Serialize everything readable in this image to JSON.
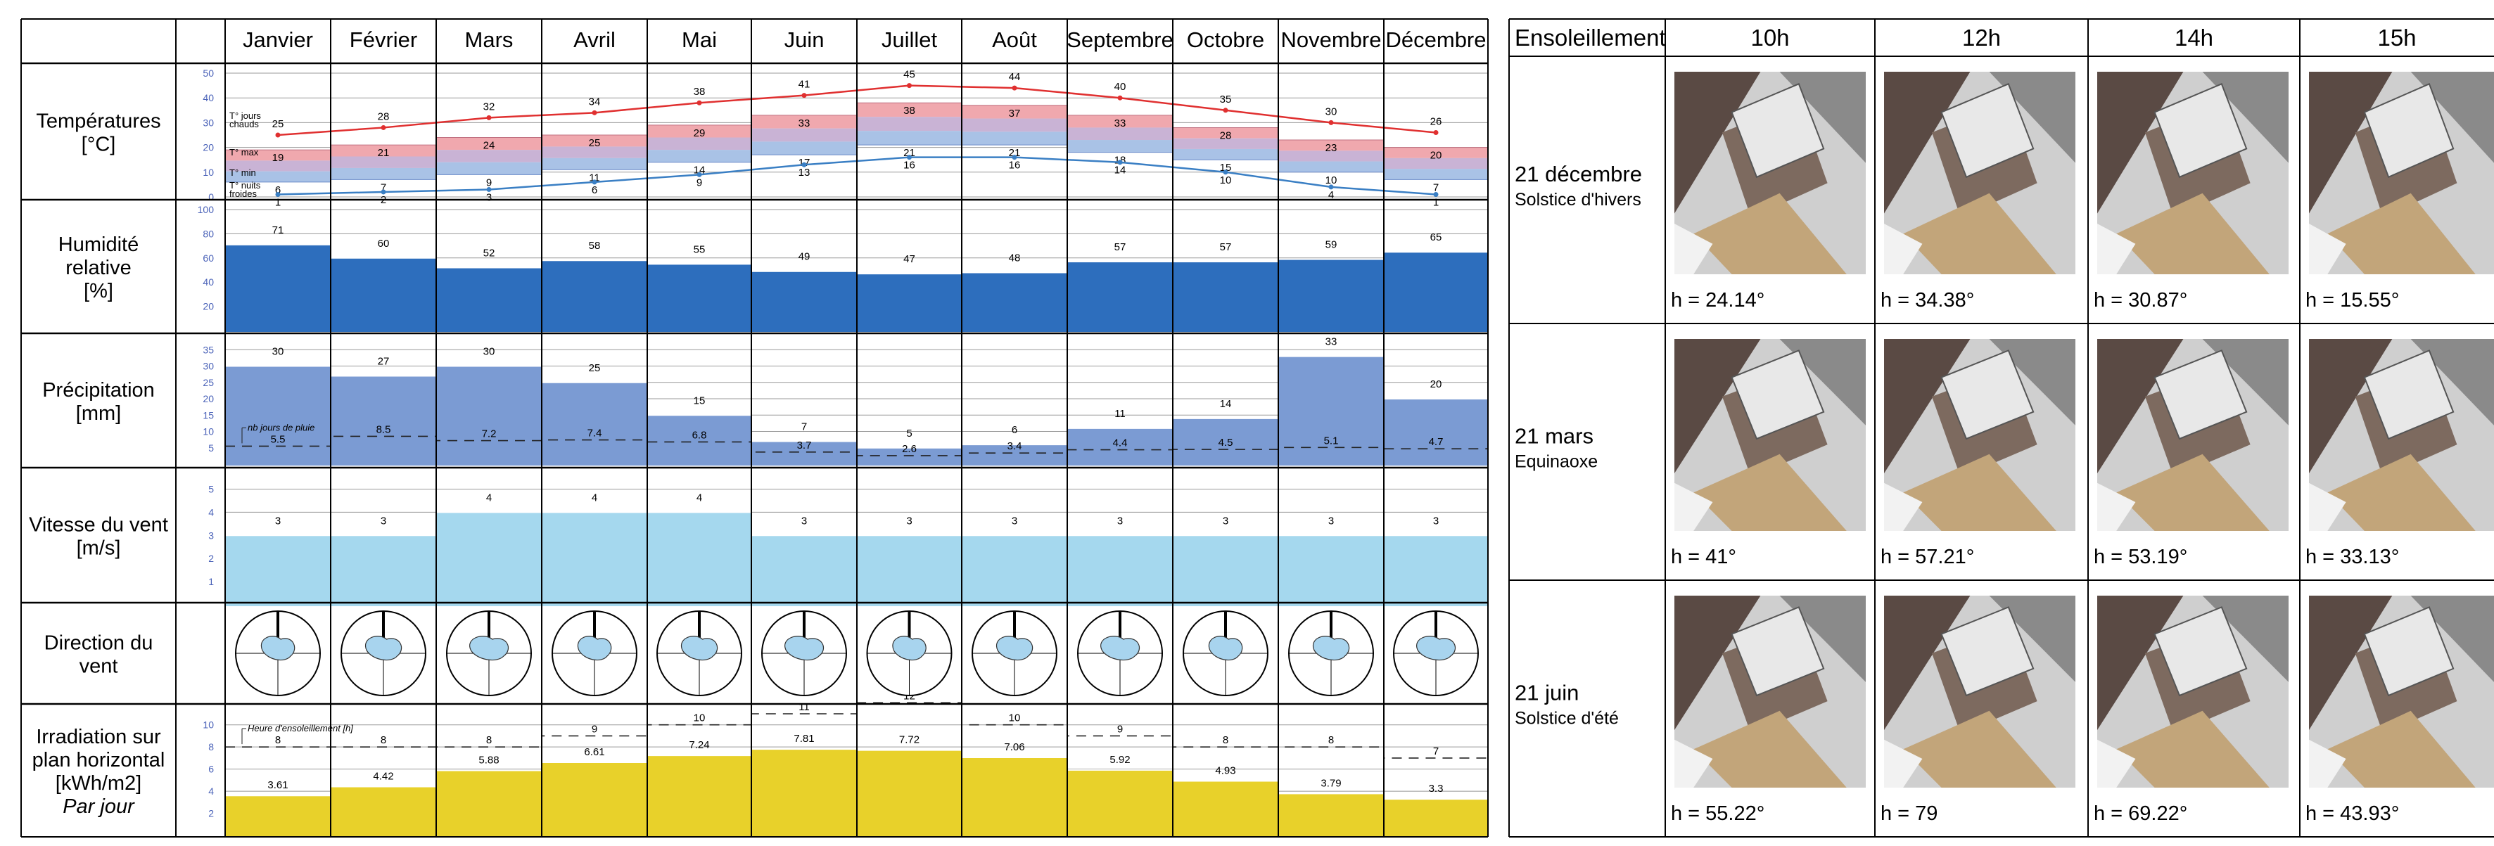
{
  "months": [
    "Janvier",
    "Février",
    "Mars",
    "Avril",
    "Mai",
    "Juin",
    "Juillet",
    "Août",
    "Septembre",
    "Octobre",
    "Novembre",
    "Décembre"
  ],
  "chart_data": [
    {
      "type": "line",
      "title": "Températures\n[°C]",
      "ylim": [
        0,
        50
      ],
      "ticks": [
        0,
        10,
        20,
        30,
        40,
        50
      ],
      "series": [
        {
          "name": "T° jours chauds",
          "color": "#e03030",
          "values": [
            25,
            28,
            32,
            34,
            38,
            41,
            45,
            44,
            40,
            35,
            30,
            26
          ]
        },
        {
          "name": "T° max",
          "values": [
            19,
            21,
            24,
            25,
            29,
            33,
            38,
            37,
            33,
            28,
            23,
            20
          ]
        },
        {
          "name": "T° min",
          "values": [
            6,
            7,
            9,
            11,
            14,
            17,
            21,
            21,
            18,
            15,
            10,
            7
          ]
        },
        {
          "name": "T° nuits froides",
          "color": "#3a7fc4",
          "values": [
            1,
            2,
            3,
            6,
            9,
            13,
            16,
            16,
            14,
            10,
            4,
            1
          ]
        }
      ],
      "band_colors": {
        "max": "#f0a8ae",
        "mid": "#c9b3d5",
        "min": "#a9c2e6"
      }
    },
    {
      "type": "bar",
      "title": "Humidité\nrelative\n[%]",
      "ylim": [
        0,
        100
      ],
      "ticks": [
        20,
        40,
        60,
        80,
        100
      ],
      "color": "#2d6ebd",
      "values": [
        71,
        60,
        52,
        58,
        55,
        49,
        47,
        48,
        57,
        57,
        59,
        65
      ]
    },
    {
      "type": "bar",
      "title": "Précipitation\n[mm]",
      "ylim": [
        0,
        37
      ],
      "ticks": [
        5,
        10,
        15,
        20,
        25,
        30,
        35
      ],
      "color": "#7b9bd3",
      "values": [
        30,
        27,
        30,
        25,
        15,
        7,
        5,
        6,
        11,
        14,
        33,
        20
      ],
      "line_label": "nb jours de pluie",
      "line_values": [
        5.5,
        8.5,
        7.2,
        7.4,
        6.8,
        3.7,
        2.6,
        3.4,
        4.4,
        4.5,
        5.1,
        4.7
      ]
    },
    {
      "type": "bar",
      "title": "Vitesse du vent\n[m/s]",
      "ylim": [
        0,
        5.5
      ],
      "ticks": [
        1,
        2,
        3,
        4,
        5
      ],
      "color": "#a5d8ee",
      "values": [
        3,
        3,
        4,
        4,
        4,
        3,
        3,
        3,
        3,
        3,
        3,
        3
      ]
    },
    {
      "type": "other",
      "title": "Direction du\nvent",
      "color": "#a8d4ee"
    },
    {
      "type": "bar",
      "title": "Irradiation sur\nplan horizontal\n[kWh/m2]\nPar jour",
      "ylim": [
        0,
        11
      ],
      "ticks": [
        2,
        4,
        6,
        8,
        10
      ],
      "color": "#e8d12a",
      "values": [
        3.61,
        4.42,
        5.88,
        6.61,
        7.24,
        7.81,
        7.72,
        7.06,
        5.92,
        4.93,
        3.79,
        3.3
      ],
      "line_label": "Heure d'ensoleillement [h]",
      "line_values": [
        8,
        8,
        8,
        9,
        10,
        11,
        12,
        10,
        9,
        8,
        8,
        7
      ]
    }
  ],
  "sun_table": {
    "header": "Ensoleillement",
    "hours": [
      "10h",
      "12h",
      "14h",
      "15h"
    ],
    "rows": [
      {
        "date": "21 décembre",
        "subtitle": "Solstice d'hivers",
        "heights": [
          "h = 24.14°",
          "h = 34.38°",
          "h = 30.87°",
          "h = 15.55°"
        ]
      },
      {
        "date": "21 mars",
        "subtitle": "Equinaoxe",
        "heights": [
          "h = 41°",
          "h = 57.21°",
          "h = 53.19°",
          "h = 33.13°"
        ]
      },
      {
        "date": "21 juin",
        "subtitle": "Solstice d'été",
        "heights": [
          "h = 55.22°",
          "h = 79",
          "h = 69.22°",
          "h = 43.93°"
        ]
      }
    ]
  },
  "colors": {
    "grid": "#999999",
    "tick": "#4a62b8",
    "border": "#000000"
  }
}
